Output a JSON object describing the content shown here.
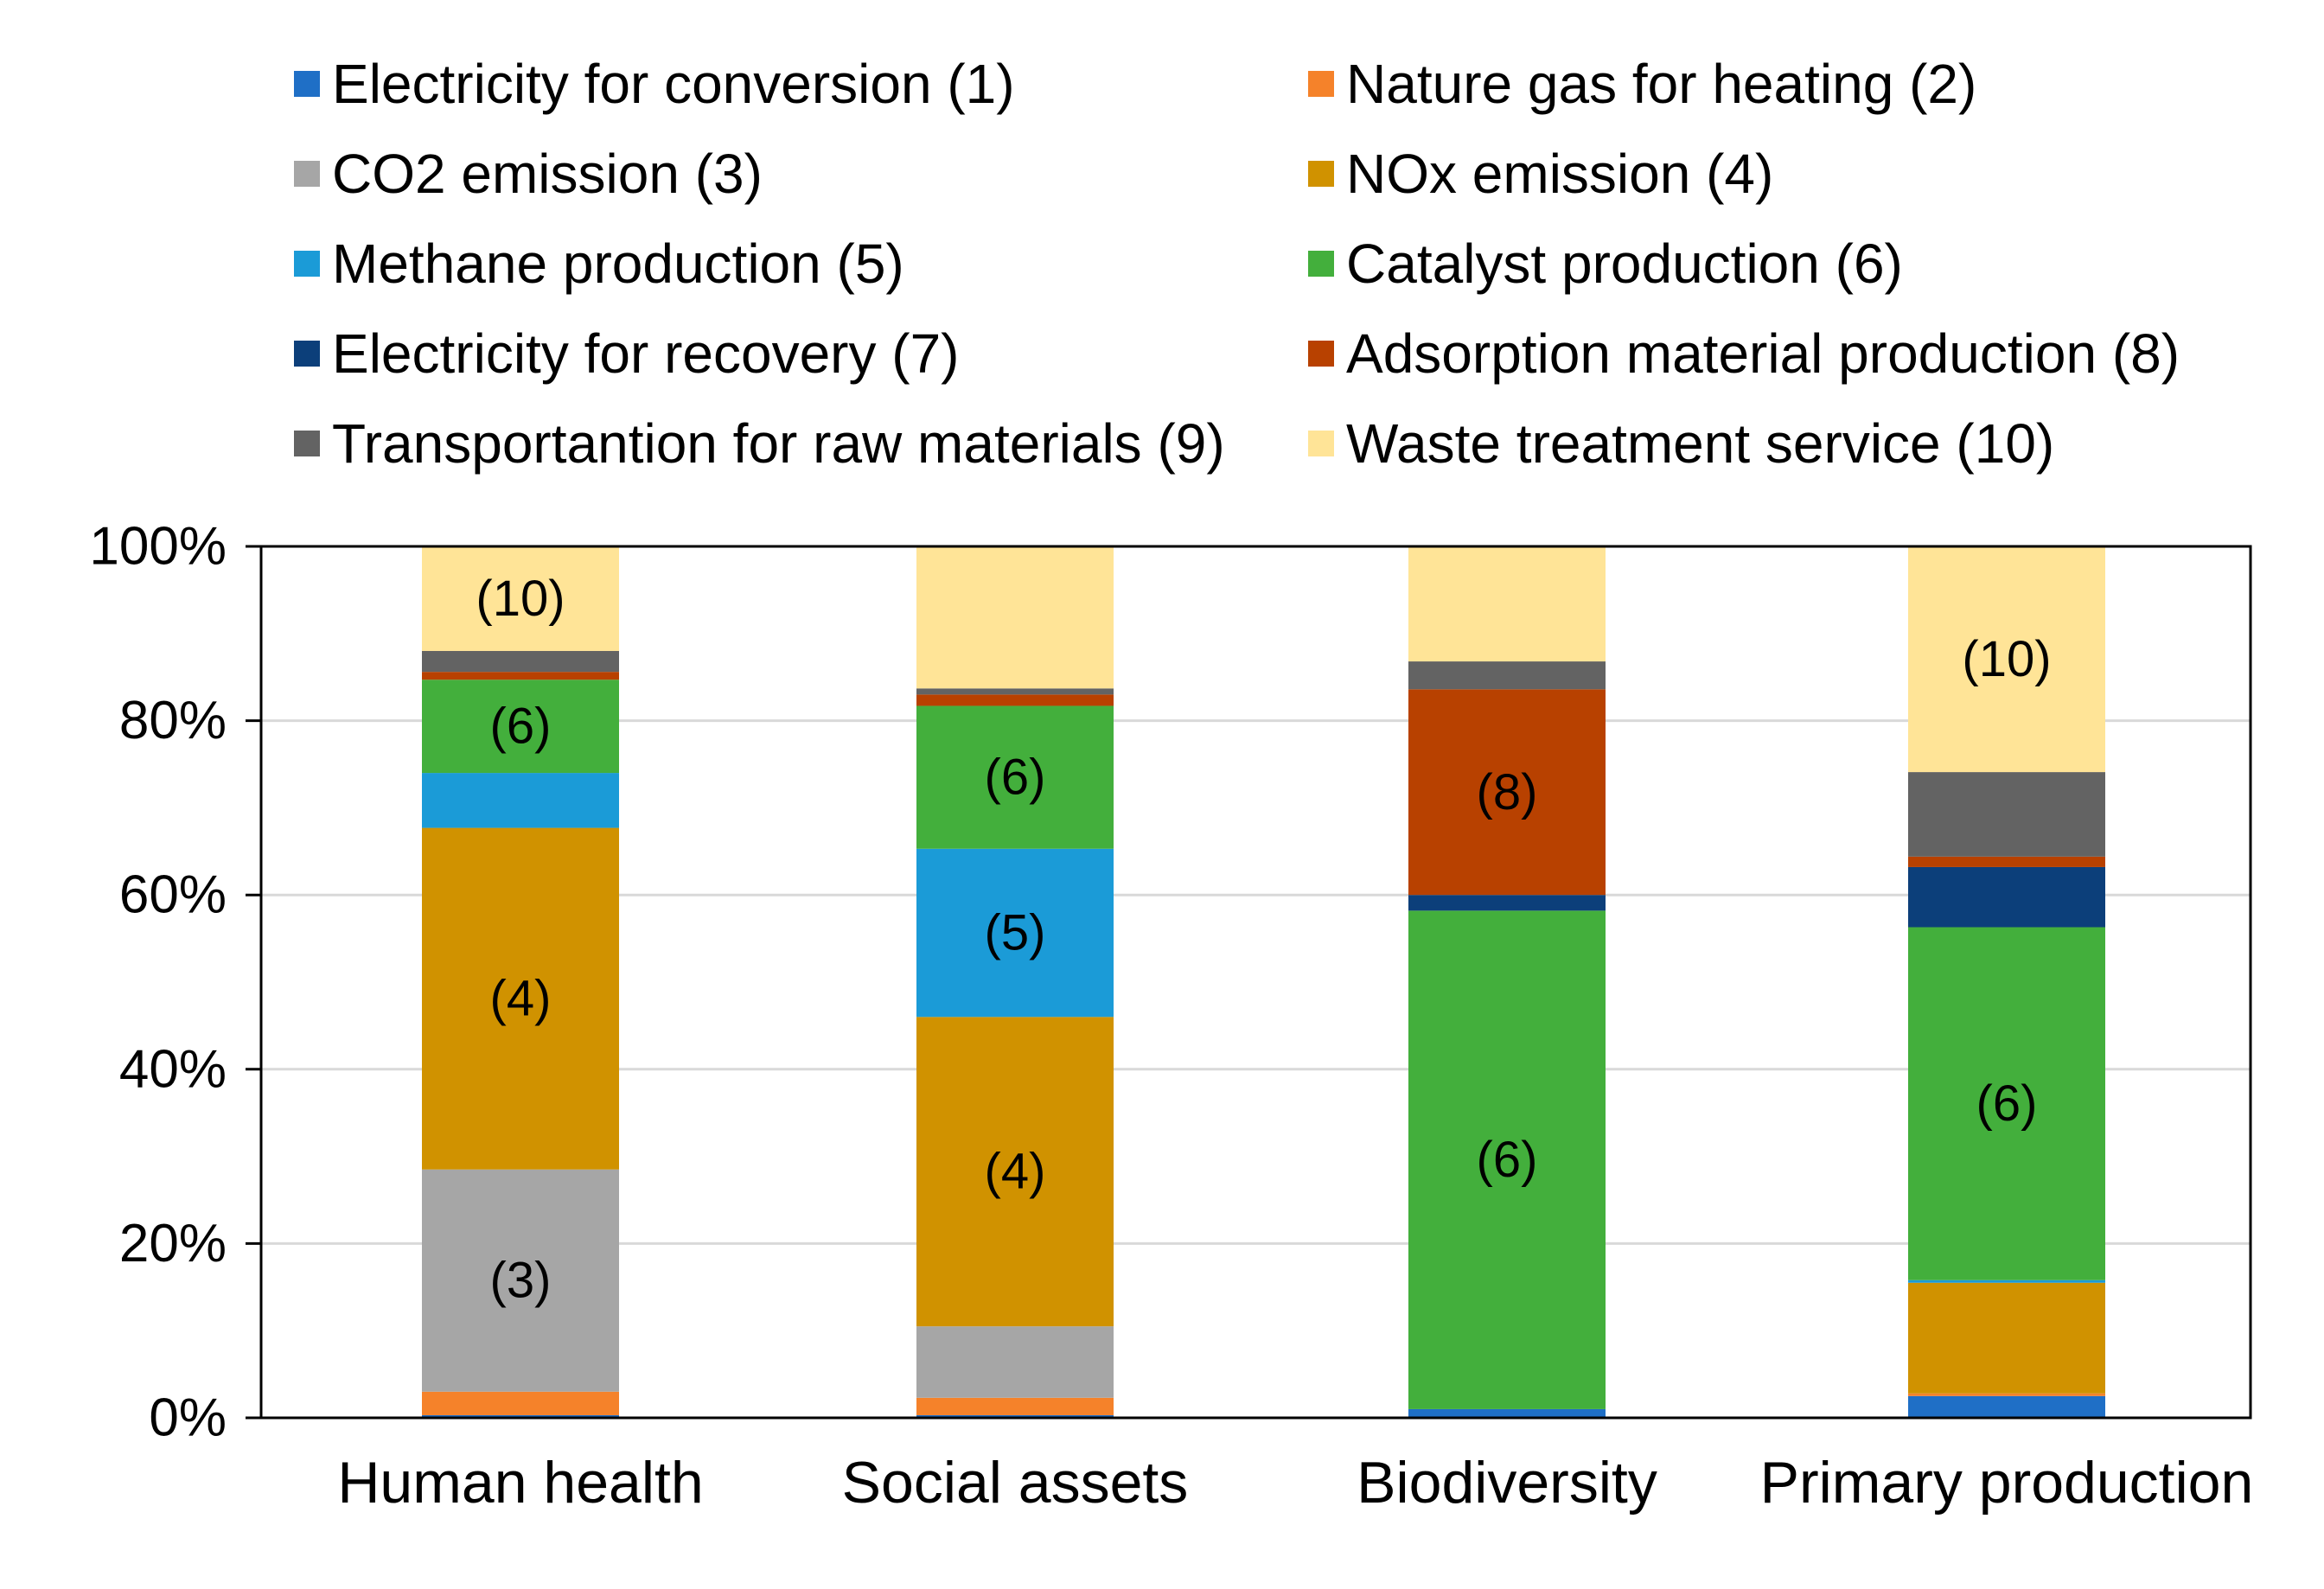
{
  "chart_data": {
    "type": "bar",
    "stacked": true,
    "percent": true,
    "title": "",
    "xlabel": "",
    "ylabel": "",
    "ylim": [
      0,
      100
    ],
    "yticks": [
      "0%",
      "20%",
      "40%",
      "60%",
      "80%",
      "100%"
    ],
    "grid": true,
    "legend_position": "top",
    "categories": [
      "Human health",
      "Social assets",
      "Biodiversity",
      "Primary production"
    ],
    "series": [
      {
        "name": "Electricity for conversion (1)",
        "color": "#1F6FC6",
        "values": [
          0.3,
          0.3,
          1.0,
          2.5
        ]
      },
      {
        "name": "Nature gas for heating (2)",
        "color": "#F5822A",
        "values": [
          2.7,
          2.0,
          0.0,
          0.3
        ]
      },
      {
        "name": "CO2 emission (3)",
        "color": "#A6A6A6",
        "values": [
          25.5,
          8.2,
          0.0,
          0.0
        ]
      },
      {
        "name": "NOx emission (4)",
        "color": "#D09200",
        "values": [
          39.2,
          35.5,
          0.0,
          12.7
        ]
      },
      {
        "name": "Methane production (5)",
        "color": "#1B9BD7",
        "values": [
          6.3,
          19.3,
          0.0,
          0.3
        ]
      },
      {
        "name": "Catalyst production (6)",
        "color": "#43AF3C",
        "values": [
          10.7,
          16.4,
          57.2,
          40.5
        ]
      },
      {
        "name": "Electricity for recovery (7)",
        "color": "#0C3F7A",
        "values": [
          0.0,
          0.0,
          1.8,
          6.9
        ]
      },
      {
        "name": "Adsorption material production (8)",
        "color": "#B84100",
        "values": [
          0.9,
          1.3,
          23.6,
          1.2
        ]
      },
      {
        "name": "Transportantion for raw materials (9)",
        "color": "#636363",
        "values": [
          2.4,
          0.7,
          3.2,
          9.7
        ]
      },
      {
        "name": "Waste treatment service (10)",
        "color": "#FFE497",
        "values": [
          12.0,
          16.3,
          13.2,
          25.9
        ]
      }
    ],
    "data_labels": [
      {
        "category": "Human health",
        "series": "Waste treatment service (10)",
        "text": "(10)"
      },
      {
        "category": "Human health",
        "series": "Catalyst production (6)",
        "text": "(6)"
      },
      {
        "category": "Human health",
        "series": "NOx emission (4)",
        "text": "(4)"
      },
      {
        "category": "Human health",
        "series": "CO2 emission (3)",
        "text": "(3)"
      },
      {
        "category": "Social assets",
        "series": "Catalyst production (6)",
        "text": "(6)"
      },
      {
        "category": "Social assets",
        "series": "Methane production (5)",
        "text": "(5)"
      },
      {
        "category": "Social assets",
        "series": "NOx emission (4)",
        "text": "(4)"
      },
      {
        "category": "Biodiversity",
        "series": "Adsorption material production (8)",
        "text": "(8)"
      },
      {
        "category": "Biodiversity",
        "series": "Catalyst production (6)",
        "text": "(6)"
      },
      {
        "category": "Primary production",
        "series": "Waste treatment service (10)",
        "text": "(10)"
      },
      {
        "category": "Primary production",
        "series": "Catalyst production (6)",
        "text": "(6)"
      }
    ]
  }
}
